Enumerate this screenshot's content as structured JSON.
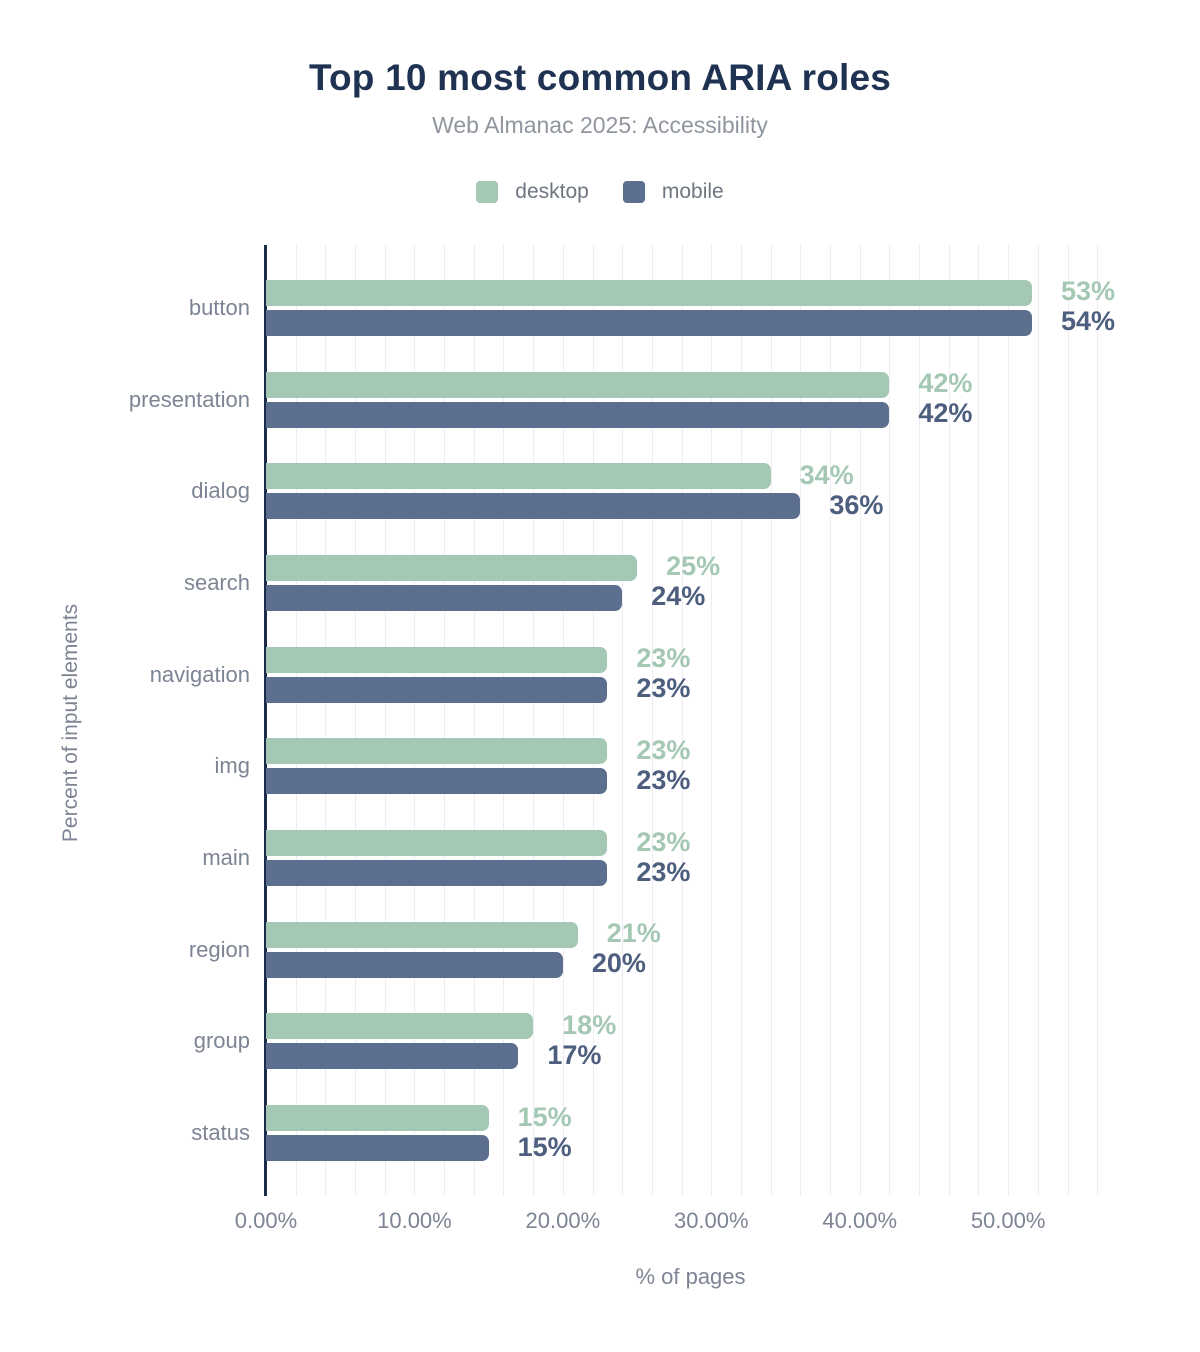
{
  "chart": {
    "title": "Top 10 most common ARIA roles",
    "subtitle": "Web Almanac 2025: Accessibility",
    "x_axis_title": "% of pages",
    "y_axis_title": "Percent of input elements"
  },
  "colors": {
    "desktop_bar": "#a5c8b4",
    "desktop_value_label": "#a5c8b4",
    "mobile_bar": "#5d6f8e",
    "mobile_value_label": "#4d5e7e",
    "title_text": "#1f3251",
    "subtitle_text": "#90969f",
    "axis_text": "#7d8494",
    "legend_text": "#6e7682",
    "axis_line": "#1c2b4a",
    "gridline": "#ececf2",
    "background": "#ffffff"
  },
  "chart_data": {
    "type": "bar",
    "orientation": "horizontal",
    "title": "Top 10 most common ARIA roles",
    "subtitle": "Web Almanac 2025: Accessibility",
    "xlabel": "% of pages",
    "ylabel": "Percent of input elements",
    "categories": [
      "button",
      "presentation",
      "dialog",
      "search",
      "navigation",
      "img",
      "main",
      "region",
      "group",
      "status"
    ],
    "series": [
      {
        "name": "desktop",
        "color": "#a5c8b4",
        "label_color": "#a5c8b4",
        "values": [
          53,
          42,
          34,
          25,
          23,
          23,
          23,
          21,
          18,
          15
        ],
        "value_labels": [
          "53%",
          "42%",
          "34%",
          "25%",
          "23%",
          "23%",
          "23%",
          "21%",
          "18%",
          "15%"
        ]
      },
      {
        "name": "mobile",
        "color": "#5d6f8e",
        "label_color": "#4d5e7e",
        "values": [
          54,
          42,
          36,
          24,
          23,
          23,
          23,
          20,
          17,
          15
        ],
        "value_labels": [
          "54%",
          "42%",
          "36%",
          "24%",
          "23%",
          "23%",
          "23%",
          "20%",
          "17%",
          "15%"
        ]
      }
    ],
    "x_ticks": [
      {
        "value": 0,
        "label": "0.00%"
      },
      {
        "value": 10,
        "label": "10.00%"
      },
      {
        "value": 20,
        "label": "20.00%"
      },
      {
        "value": 30,
        "label": "30.00%"
      },
      {
        "value": 40,
        "label": "40.00%"
      },
      {
        "value": 50,
        "label": "50.00%"
      }
    ],
    "xlim": [
      0,
      57.2
    ],
    "gridline_interval": 2,
    "grid": true,
    "legend_position": "top"
  }
}
